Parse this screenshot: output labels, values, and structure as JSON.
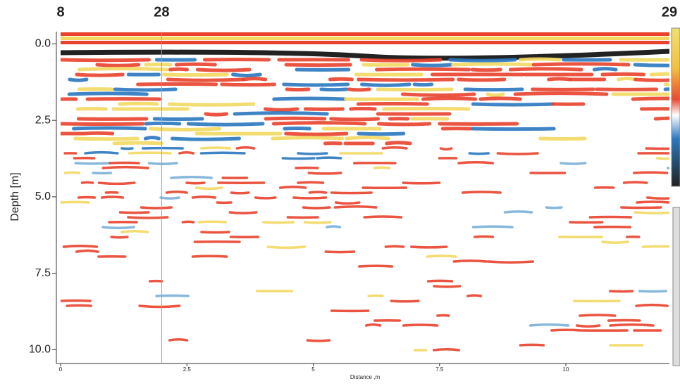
{
  "chart_data": {
    "type": "radargram",
    "xlabel": "Distance ,m",
    "ylabel": "Depth [m]",
    "xlim": [
      0,
      12.05
    ],
    "ylim": [
      -0.4,
      10.45
    ],
    "y_reversed": true,
    "xticks": [
      0,
      2.5,
      5,
      7.5,
      10
    ],
    "yticks": [
      {
        "value": 0,
        "label": "0.0"
      },
      {
        "value": 2.5,
        "label": "2.5"
      },
      {
        "value": 5,
        "label": "5.0"
      },
      {
        "value": 7.5,
        "label": "7.5"
      },
      {
        "value": 10,
        "label": "10.0"
      }
    ],
    "markers": [
      {
        "label": "8",
        "x": 0
      },
      {
        "label": "28",
        "x": 2
      },
      {
        "label": "29",
        "x": 12.05
      }
    ]
  }
}
